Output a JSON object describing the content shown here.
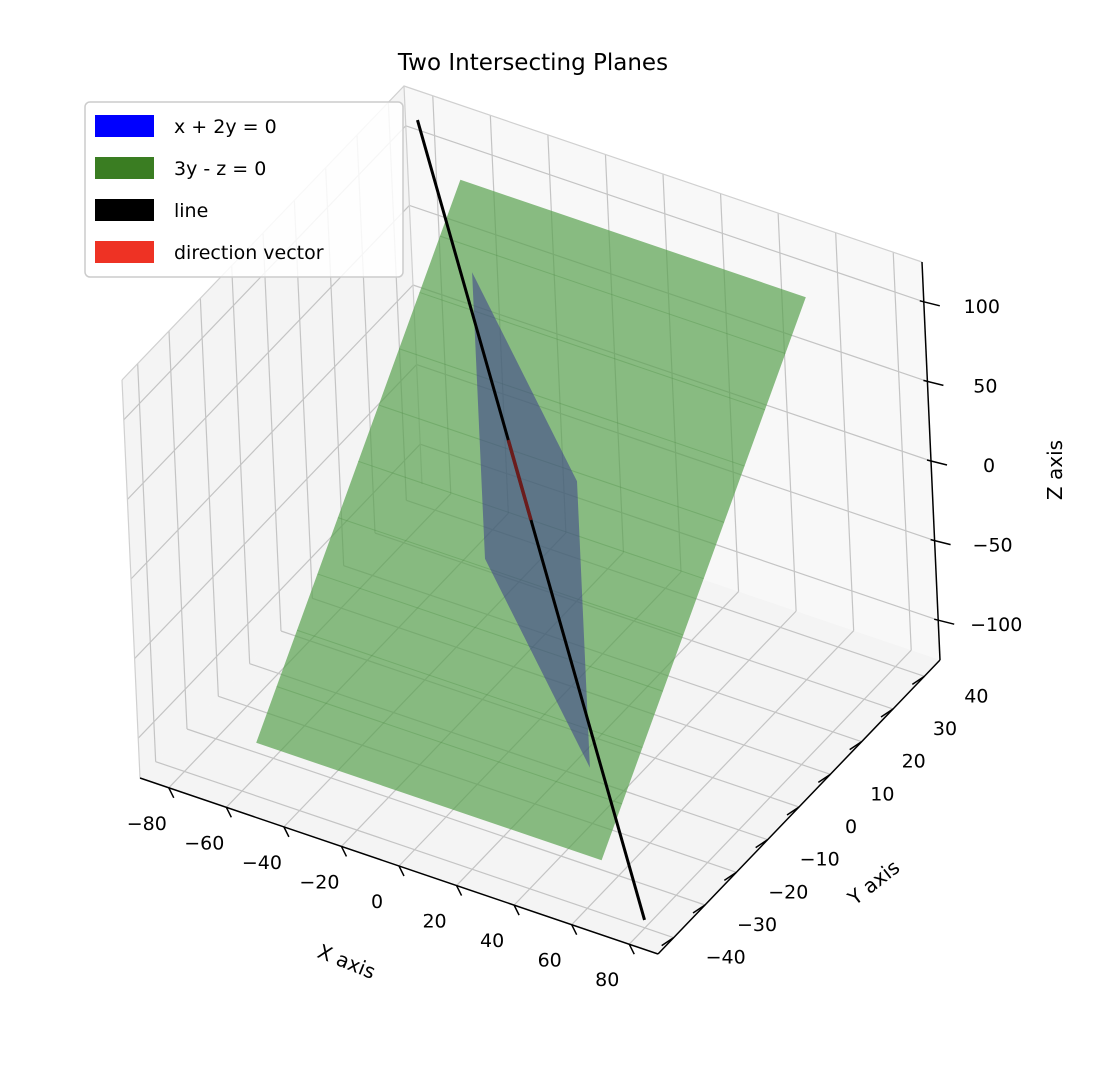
{
  "chart_data": {
    "type": "surface3d",
    "title": "Two Intersecting Planes",
    "xlabel": "X axis",
    "ylabel": "Y axis",
    "zlabel": "Z axis",
    "xlim": [
      -90,
      90
    ],
    "ylim": [
      -45,
      45
    ],
    "zlim": [
      -125,
      125
    ],
    "xticks": [
      -80,
      -60,
      -40,
      -20,
      0,
      20,
      40,
      60,
      80
    ],
    "xtick_labels": [
      "−80",
      "−60",
      "−40",
      "−20",
      "0",
      "20",
      "40",
      "60",
      "80"
    ],
    "yticks": [
      -40,
      -30,
      -20,
      -10,
      0,
      10,
      20,
      30,
      40
    ],
    "ytick_labels": [
      "−40",
      "−30",
      "−20",
      "−10",
      "0",
      "10",
      "20",
      "30",
      "40"
    ],
    "zticks": [
      -100,
      -50,
      0,
      50,
      100
    ],
    "ztick_labels": [
      "−100",
      "−50",
      "0",
      "50",
      "100"
    ],
    "grid": true,
    "legend_position": "top-left",
    "series": [
      {
        "name": "x + 2y = 0",
        "kind": "plane",
        "equation": "x + 2y = 0",
        "color": "#0000ff",
        "render_color": "#3b3d8c",
        "alpha": 0.55,
        "x_range": [
          -40,
          40
        ],
        "z_range": [
          -90,
          90
        ]
      },
      {
        "name": "3y - z = 0",
        "kind": "plane",
        "equation": "3y - z = 0",
        "color": "#3a7d22",
        "render_color": "#59a14f",
        "alpha": 0.7,
        "x_range": [
          -60,
          60
        ],
        "y_range": [
          -35,
          35
        ]
      },
      {
        "name": "line",
        "kind": "line",
        "color": "#000000",
        "points": [
          [
            -80,
            40,
            120
          ],
          [
            80,
            -40,
            -120
          ]
        ]
      },
      {
        "name": "direction vector",
        "kind": "vector",
        "color": "#ee3224",
        "start": [
          0,
          0,
          0
        ],
        "end": [
          -2,
          1,
          3
        ]
      }
    ]
  }
}
